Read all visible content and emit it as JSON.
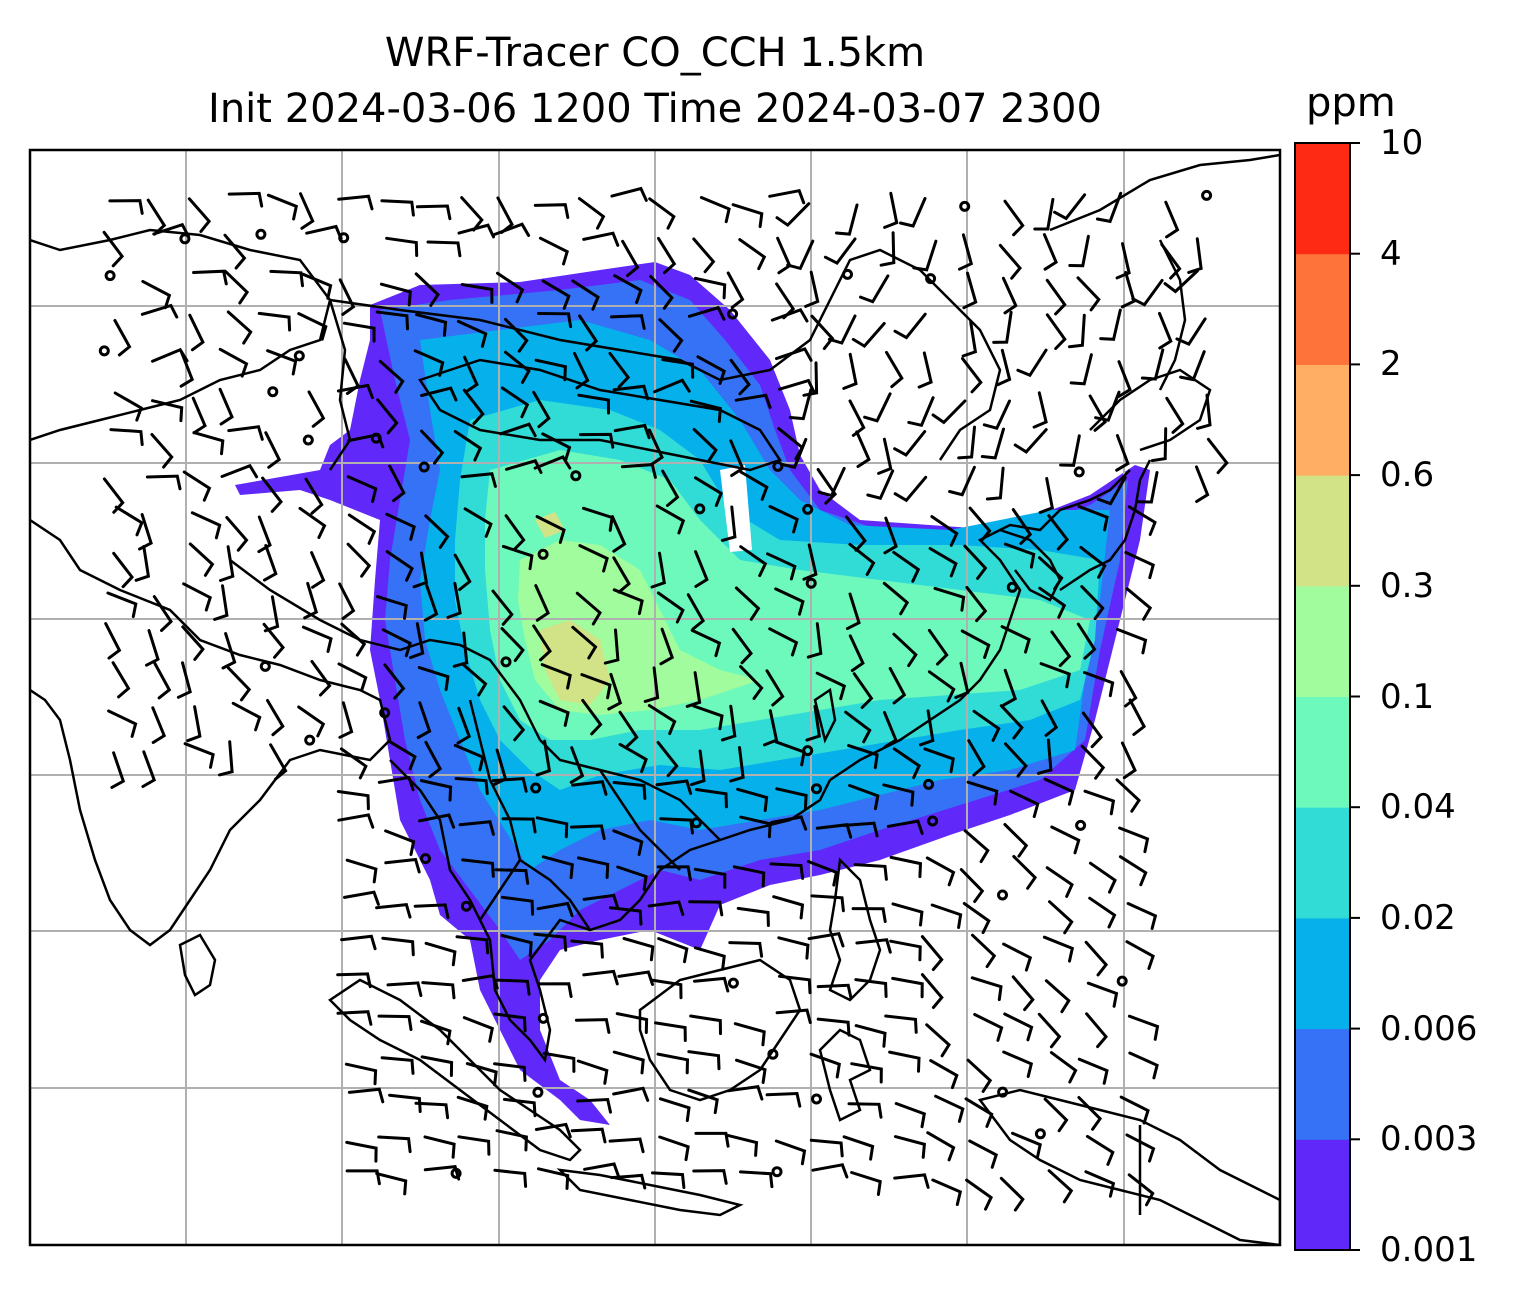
{
  "title": {
    "line1": "WRF-Tracer CO_CCH 1.5km",
    "line2": "Init 2024-03-06 1200 Time 2024-03-07 2300"
  },
  "colorbar": {
    "unit": "ppm",
    "levels": [
      "0.001",
      "0.003",
      "0.006",
      "0.02",
      "0.04",
      "0.1",
      "0.3",
      "0.6",
      "2",
      "4",
      "10"
    ],
    "colors": [
      "#6029fa",
      "#3572f5",
      "#05b0eb",
      "#31dbd6",
      "#6cf9bb",
      "#a1fc9e",
      "#d1e287",
      "#ffae63",
      "#fe7339",
      "#ff2a14"
    ]
  },
  "map": {
    "field": "CO_CCH tracer concentration",
    "overlays": [
      "coastlines",
      "country-borders",
      "lat-lon-gridlines",
      "wind-barbs"
    ],
    "gridline_color": "#b0b0b0"
  }
}
